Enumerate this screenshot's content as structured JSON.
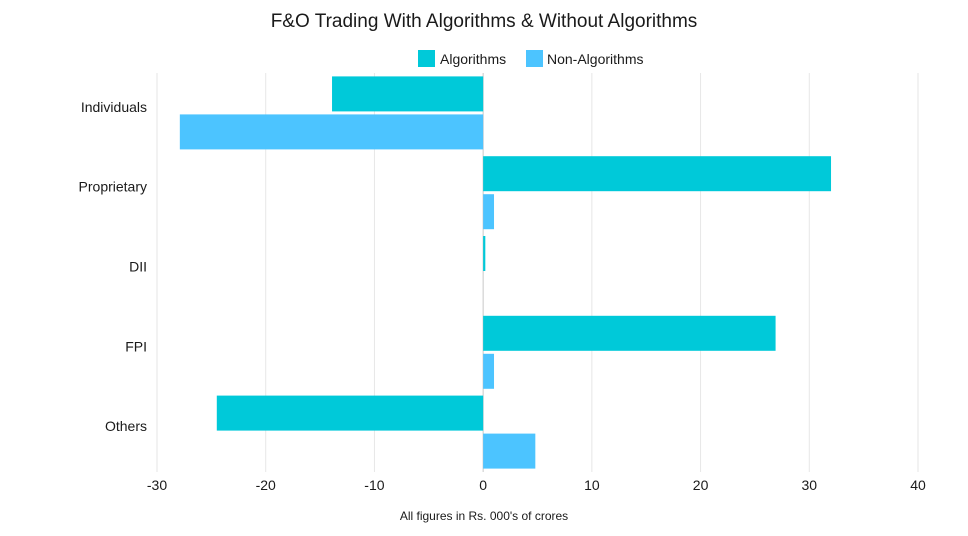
{
  "chart_data": {
    "type": "bar",
    "orientation": "horizontal",
    "title": "F&O Trading With Algorithms & Without Algorithms",
    "xlabel": "All figures in Rs. 000's of crores",
    "ylabel": "",
    "categories": [
      "Individuals",
      "Proprietary",
      "DII",
      "FPI",
      "Others"
    ],
    "series": [
      {
        "name": "Algorithms",
        "values": [
          -13.9,
          32.0,
          0.2,
          26.9,
          -24.5
        ],
        "color": "#00c9d9"
      },
      {
        "name": "Non-Algorithms",
        "values": [
          -27.9,
          1.0,
          0.0,
          1.0,
          4.8
        ],
        "color": "#4cc4ff"
      }
    ],
    "xlim": [
      -30,
      40
    ],
    "xticks": [
      -30,
      -20,
      -10,
      0,
      10,
      20,
      30,
      40
    ],
    "grid": true,
    "legend": "top-center"
  }
}
